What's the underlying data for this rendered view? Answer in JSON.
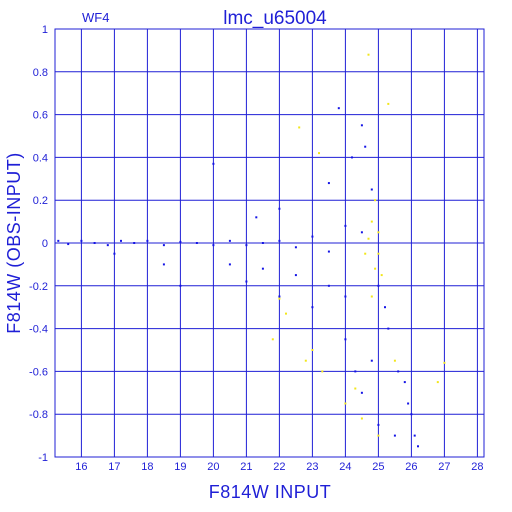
{
  "chart_data": {
    "type": "scatter",
    "title": "lmc_u65004",
    "panel_label": "WF4",
    "xlabel": "F814W INPUT",
    "ylabel": "F814W (OBS-INPUT)",
    "xlim": [
      15.2,
      28.2
    ],
    "ylim": [
      -1,
      1
    ],
    "x_ticks": [
      16,
      17,
      18,
      19,
      20,
      21,
      22,
      23,
      24,
      25,
      26,
      27,
      28
    ],
    "y_ticks": [
      -1,
      -0.8,
      -0.6,
      -0.4,
      -0.2,
      0,
      0.2,
      0.4,
      0.6,
      0.8,
      1
    ],
    "grid": true,
    "colors": {
      "frame": "#1f1fd6",
      "primary_points": "#1414e6",
      "secondary_points": "#f2e61a"
    },
    "series": [
      {
        "color": "#1414e6",
        "points": [
          [
            15.3,
            0.01
          ],
          [
            15.6,
            -0.005
          ],
          [
            16.0,
            0.01
          ],
          [
            16.4,
            0.0
          ],
          [
            16.8,
            -0.01
          ],
          [
            17.2,
            0.01
          ],
          [
            17.6,
            0.0
          ],
          [
            18.0,
            0.01
          ],
          [
            18.5,
            -0.01
          ],
          [
            19.0,
            0.005
          ],
          [
            19.5,
            0.0
          ],
          [
            20.0,
            -0.01
          ],
          [
            20.5,
            0.01
          ],
          [
            21.0,
            -0.01
          ],
          [
            21.5,
            0.0
          ],
          [
            22.0,
            0.01
          ],
          [
            22.5,
            -0.02
          ],
          [
            23.0,
            0.03
          ],
          [
            23.5,
            -0.04
          ],
          [
            24.0,
            0.08
          ],
          [
            24.5,
            0.05
          ],
          [
            24.8,
            0.25
          ],
          [
            25.0,
            -0.2
          ],
          [
            25.3,
            -0.4
          ],
          [
            25.6,
            -0.6
          ],
          [
            25.9,
            -0.75
          ],
          [
            26.1,
            -0.9
          ],
          [
            26.2,
            -0.95
          ],
          [
            24.5,
            0.55
          ],
          [
            24.6,
            0.45
          ],
          [
            24.2,
            0.4
          ],
          [
            23.5,
            0.28
          ],
          [
            22.0,
            0.16
          ],
          [
            21.3,
            0.12
          ],
          [
            23.8,
            0.63
          ],
          [
            20.0,
            0.37
          ],
          [
            19.0,
            -0.2
          ],
          [
            18.5,
            -0.1
          ],
          [
            17.0,
            -0.05
          ],
          [
            21.0,
            -0.18
          ],
          [
            22.0,
            -0.25
          ],
          [
            23.0,
            -0.3
          ],
          [
            24.0,
            -0.45
          ],
          [
            24.5,
            -0.7
          ],
          [
            25.0,
            -0.85
          ],
          [
            25.5,
            -0.9
          ],
          [
            24.0,
            -0.25
          ],
          [
            23.5,
            -0.2
          ],
          [
            22.5,
            -0.15
          ],
          [
            21.5,
            -0.12
          ],
          [
            20.5,
            -0.1
          ],
          [
            25.2,
            -0.3
          ],
          [
            25.8,
            -0.65
          ],
          [
            24.8,
            -0.55
          ],
          [
            24.3,
            -0.6
          ],
          [
            26.0,
            -0.8
          ]
        ]
      },
      {
        "color": "#f2e61a",
        "points": [
          [
            24.7,
            0.88
          ],
          [
            25.3,
            0.65
          ],
          [
            22.6,
            0.54
          ],
          [
            23.2,
            0.42
          ],
          [
            24.9,
            0.2
          ],
          [
            24.8,
            0.1
          ],
          [
            25.0,
            0.05
          ],
          [
            24.6,
            -0.05
          ],
          [
            25.1,
            -0.15
          ],
          [
            24.8,
            -0.25
          ],
          [
            22.0,
            -0.26
          ],
          [
            22.2,
            -0.33
          ],
          [
            21.8,
            -0.45
          ],
          [
            23.0,
            -0.5
          ],
          [
            23.3,
            -0.6
          ],
          [
            24.0,
            -0.75
          ],
          [
            24.5,
            -0.82
          ],
          [
            25.0,
            -0.9
          ],
          [
            24.3,
            -0.68
          ],
          [
            25.5,
            -0.55
          ],
          [
            26.8,
            -0.65
          ],
          [
            27.0,
            -0.56
          ],
          [
            22.8,
            -0.55
          ],
          [
            24.7,
            0.02
          ],
          [
            25.0,
            -0.05
          ],
          [
            24.9,
            -0.12
          ]
        ]
      }
    ]
  }
}
